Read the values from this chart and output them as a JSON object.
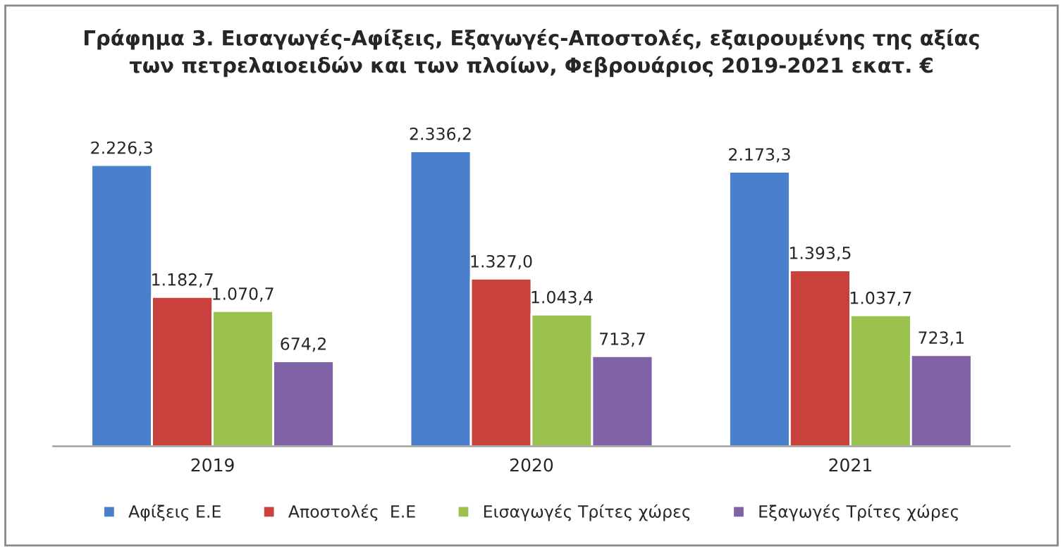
{
  "chart_data": {
    "type": "bar",
    "title": "Γράφημα 3. Εισαγωγές-Αφίξεις, Εξαγωγές-Αποστολές, εξαιρουμένης της αξίας\nτων πετρελαιοειδών και των πλοίων, Φεβρουάριος 2019-2021 εκατ. €",
    "categories": [
      "2019",
      "2020",
      "2021"
    ],
    "series": [
      {
        "name": "Αφίξεις Ε.Ε",
        "color": "#4a7fcb",
        "values": [
          2226.3,
          2336.2,
          2173.3
        ],
        "value_labels": [
          "2.226,3",
          "2.336,2",
          "2.173,3"
        ]
      },
      {
        "name": "Αποστολές  Ε.Ε",
        "color": "#c8413c",
        "values": [
          1182.7,
          1327.0,
          1393.5
        ],
        "value_labels": [
          "1.182,7",
          "1.327,0",
          "1.393,5"
        ]
      },
      {
        "name": "Εισαγωγές Τρίτες χώρες",
        "color": "#9bc24f",
        "values": [
          1070.7,
          1043.4,
          1037.7
        ],
        "value_labels": [
          "1.070,7",
          "1.043,4",
          "1.037,7"
        ]
      },
      {
        "name": "Εξαγωγές Τρίτες χώρες",
        "color": "#8062a6",
        "values": [
          674.2,
          713.7,
          723.1
        ],
        "value_labels": [
          "674,2",
          "713,7",
          "723,1"
        ]
      }
    ],
    "legend": "bottom",
    "grid": false
  }
}
